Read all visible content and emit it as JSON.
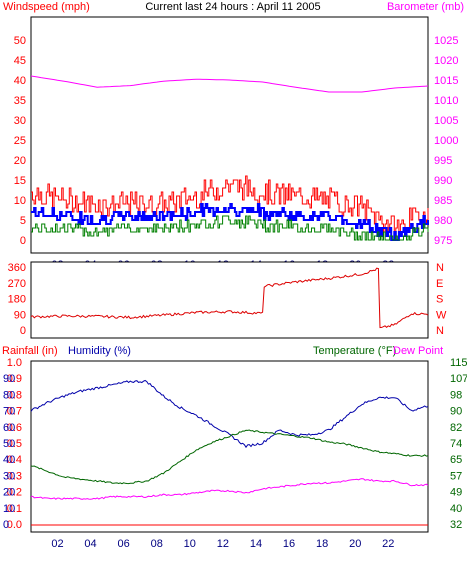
{
  "title": "Current last 24 hours : April 11 2005",
  "colors": {
    "wind": "#ff0000",
    "gust": "#cc0000",
    "avg": "#0000ff",
    "low": "#008000",
    "baro": "#ff00ff",
    "dir": "#dd0000",
    "humidity": "#0000aa",
    "temperature": "#006600",
    "dewpoint": "#ff00ff",
    "rain": "#ff0000"
  },
  "x_ticks": [
    "02",
    "04",
    "06",
    "08",
    "10",
    "12",
    "14",
    "16",
    "18",
    "20",
    "22"
  ],
  "chart_data": [
    {
      "type": "line",
      "name": "wind-baro",
      "left_label": "Windspeed (mph)",
      "right_label": "Barometer (mb)",
      "left_ticks": [
        0,
        5,
        10,
        15,
        20,
        25,
        30,
        35,
        40,
        45,
        50
      ],
      "right_ticks": [
        975,
        980,
        985,
        990,
        995,
        1000,
        1005,
        1010,
        1015,
        1020,
        1025
      ],
      "ylim_left": [
        0,
        50
      ],
      "ylim_right": [
        975,
        1025
      ],
      "x_hours": [
        0,
        2,
        4,
        6,
        8,
        10,
        12,
        14,
        16,
        18,
        20,
        22,
        24
      ],
      "barometer": [
        1016.0,
        1014.7,
        1013.2,
        1013.6,
        1014.7,
        1015.2,
        1015.0,
        1014.5,
        1013.2,
        1012.0,
        1012.0,
        1013.0,
        1013.5
      ],
      "wind_max": [
        12,
        10,
        9,
        9,
        9,
        11,
        14,
        12,
        11,
        10,
        8,
        3,
        7
      ],
      "wind_avg": [
        7,
        6,
        5,
        6,
        6,
        7,
        8,
        7,
        6,
        6,
        4,
        1,
        5
      ],
      "wind_min": [
        3,
        3,
        2,
        3,
        3,
        4,
        5,
        4,
        3,
        3,
        1,
        0,
        3
      ]
    },
    {
      "type": "line",
      "name": "wind-direction",
      "left_ticks": [
        0,
        90,
        180,
        270,
        360
      ],
      "right_ticks": [
        "N",
        "W",
        "S",
        "E",
        "N"
      ],
      "ylim": [
        0,
        360
      ],
      "x_hours": [
        0,
        2,
        4,
        6,
        8,
        10,
        12,
        14,
        14.1,
        16,
        18,
        20,
        21,
        21.1,
        22,
        23,
        24
      ],
      "direction": [
        75,
        80,
        78,
        72,
        85,
        100,
        105,
        95,
        250,
        275,
        295,
        320,
        350,
        10,
        30,
        95,
        90
      ]
    },
    {
      "type": "line",
      "name": "hum-temp",
      "labels": {
        "rain": "Rainfall (in)",
        "humidity": "Humidity (%)",
        "temperature": "Temperature (°F)",
        "dewpoint": "Dew Point"
      },
      "left_ticks": [
        "0.0",
        "0.1",
        "0.2",
        "0.3",
        "0.4",
        "0.5",
        "0.6",
        "0.7",
        "0.8",
        "0.9",
        "1.0"
      ],
      "hum_ticks": [
        0,
        10,
        20,
        30,
        40,
        50,
        60,
        70,
        80,
        90,
        100
      ],
      "right_ticks": [
        32,
        40,
        49,
        57,
        65,
        74,
        82,
        90,
        98,
        107,
        115
      ],
      "ylim_hum": [
        0,
        100
      ],
      "ylim_temp": [
        32,
        115
      ],
      "x_hours": [
        0,
        1,
        2,
        3,
        4,
        5,
        6,
        7,
        8,
        9,
        10,
        11,
        12,
        13,
        14,
        15,
        16,
        17,
        18,
        19,
        20,
        21,
        22,
        23,
        24
      ],
      "humidity": [
        70,
        75,
        79,
        82,
        84,
        86,
        88,
        88,
        79,
        72,
        67,
        61,
        55,
        48,
        50,
        58,
        55,
        55,
        58,
        66,
        74,
        78,
        78,
        70,
        73
      ],
      "temperature": [
        62,
        59,
        56,
        55,
        54,
        53,
        53,
        54,
        58,
        64,
        70,
        74,
        77,
        80,
        79,
        78,
        77,
        76,
        74,
        73,
        71,
        69,
        68,
        67,
        67
      ],
      "dewpoint": [
        46,
        45,
        45,
        45,
        45,
        46,
        46,
        46,
        47,
        47,
        48,
        49,
        49,
        48,
        50,
        51,
        52,
        53,
        53,
        54,
        55,
        54,
        54,
        52,
        52
      ],
      "rainfall": [
        0,
        0,
        0,
        0,
        0,
        0,
        0,
        0,
        0,
        0,
        0,
        0,
        0,
        0,
        0,
        0,
        0,
        0,
        0,
        0,
        0,
        0,
        0,
        0,
        0
      ]
    }
  ]
}
